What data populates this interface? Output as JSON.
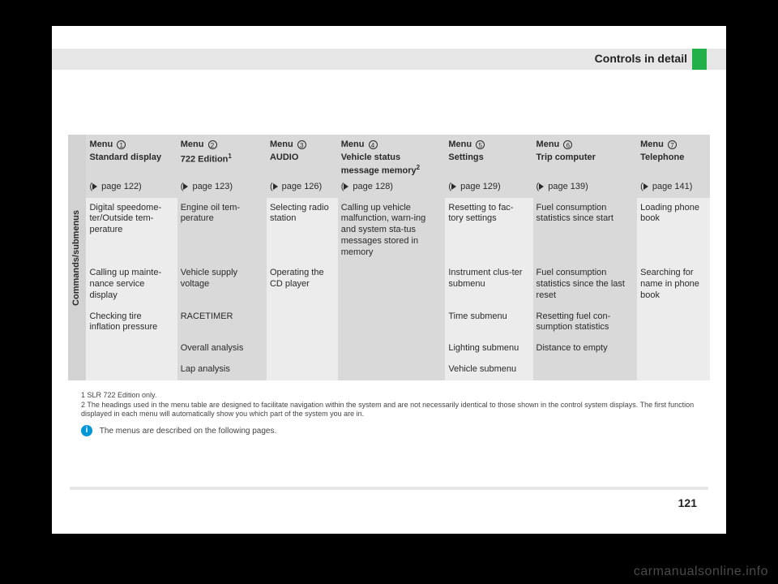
{
  "header": {
    "title": "Controls in detail"
  },
  "table": {
    "side_label": "Commands/submenus",
    "columns": [
      {
        "menu_label": "Menu",
        "circled": "1",
        "subhead": "Standard display",
        "page": "page 122"
      },
      {
        "menu_label": "Menu",
        "circled": "2",
        "subhead": "722 Edition",
        "sup": "1",
        "page": "page 123"
      },
      {
        "menu_label": "Menu",
        "circled": "3",
        "subhead": "AUDIO",
        "page": "page 126"
      },
      {
        "menu_label": "Menu",
        "circled": "4",
        "subhead": "Vehicle status message memory",
        "sup": "2",
        "page": "page 128"
      },
      {
        "menu_label": "Menu",
        "circled": "5",
        "subhead": "Settings",
        "page": "page 129"
      },
      {
        "menu_label": "Menu",
        "circled": "6",
        "subhead": "Trip computer",
        "page": "page 139"
      },
      {
        "menu_label": "Menu",
        "circled": "7",
        "subhead": "Telephone",
        "page": "page 141"
      }
    ],
    "rows": [
      [
        "Digital speedome-ter/Outside tem-perature",
        "Engine oil tem-perature",
        "Selecting radio station",
        "Calling up vehicle malfunction, warn-ing and system sta-tus messages stored in memory",
        "Resetting to fac-tory settings",
        "Fuel consumption statistics since start",
        "Loading phone book"
      ],
      [
        "Calling up mainte-nance service display",
        "Vehicle supply voltage",
        "Operating the CD player",
        "",
        "Instrument clus-ter submenu",
        "Fuel consumption statistics since the last reset",
        "Searching for name in phone book"
      ],
      [
        "Checking tire inflation pressure",
        "RACETIMER",
        "",
        "",
        "Time submenu",
        "Resetting fuel con-sumption statistics",
        ""
      ],
      [
        "",
        "Overall analysis",
        "",
        "",
        "Lighting submenu",
        "Distance to empty",
        ""
      ],
      [
        "",
        "Lap analysis",
        "",
        "",
        "Vehicle submenu",
        "",
        ""
      ]
    ]
  },
  "footnotes": {
    "f1": "1  SLR 722 Edition only.",
    "f2": "2  The headings used in the menu table are designed to facilitate navigation within the system and are not necessarily identical to those shown in the control system displays. The first function displayed in each menu will automatically show you which part of the system you are in."
  },
  "info_note": "The menus are described on the following pages.",
  "page_number": "121",
  "watermark": "carmanualsonline.info"
}
